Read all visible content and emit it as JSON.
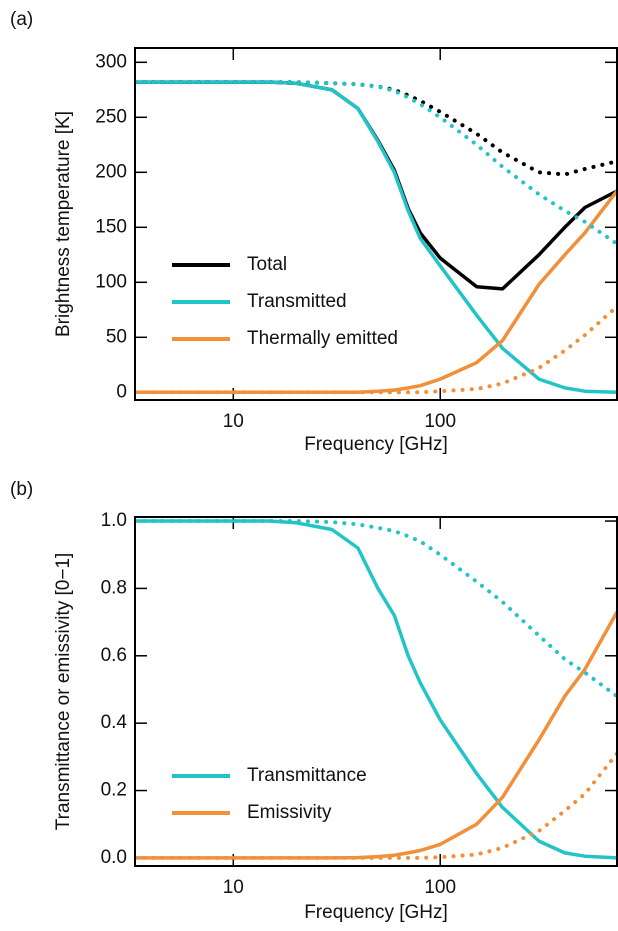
{
  "chart_data": [
    {
      "type": "line",
      "panel_label": "(a)",
      "x_label": "Frequency [GHz]",
      "y_label": "Brightness temperature [K]",
      "x_scale": "log",
      "xlim": [
        3.35,
        715
      ],
      "xticks": [
        10,
        100
      ],
      "ylim": [
        -7,
        313
      ],
      "yticks": [
        0,
        50,
        100,
        150,
        200,
        250,
        300
      ],
      "legend": "center left",
      "x": [
        3.35,
        5,
        10,
        15,
        20,
        30,
        40,
        50,
        60,
        70,
        80,
        100,
        150,
        200,
        300,
        400,
        500,
        715
      ],
      "series": [
        {
          "name": "Total",
          "color": "#000000",
          "style": "solid",
          "values": [
            282,
            282,
            282,
            282,
            281,
            275,
            258,
            229,
            202,
            167,
            145,
            122,
            96,
            94,
            125,
            150,
            168,
            183
          ]
        },
        {
          "name": "Transmitted",
          "color": "#22c4c8",
          "style": "solid",
          "values": [
            282,
            282,
            282,
            282,
            281,
            275,
            258,
            228,
            200,
            165,
            140,
            115,
            70,
            40,
            12,
            4,
            1,
            0
          ]
        },
        {
          "name": "Thermally emitted",
          "color": "#f0903a",
          "style": "solid",
          "values": [
            0,
            0,
            0,
            0,
            0,
            0,
            0,
            1,
            2,
            4,
            6,
            12,
            27,
            47,
            98,
            125,
            145,
            183
          ]
        },
        {
          "color": "#000000",
          "style": "dotted",
          "values": [
            282,
            282,
            282,
            282,
            282,
            281,
            280,
            278,
            275,
            270,
            265,
            255,
            235,
            218,
            200,
            198,
            203,
            210
          ]
        },
        {
          "color": "#22c4c8",
          "style": "dotted",
          "values": [
            282,
            282,
            282,
            282,
            282,
            281,
            280,
            278,
            274,
            268,
            262,
            250,
            225,
            205,
            180,
            165,
            155,
            135
          ]
        },
        {
          "color": "#f0903a",
          "style": "dotted",
          "values": [
            0,
            0,
            0,
            0,
            0,
            0,
            0,
            0,
            0,
            0,
            0,
            1,
            3,
            8,
            22,
            38,
            52,
            78
          ]
        }
      ]
    },
    {
      "type": "line",
      "panel_label": "(b)",
      "x_label": "Frequency [GHz]",
      "y_label": "Transmittance or emissivity [0−1]",
      "x_scale": "log",
      "xlim": [
        3.35,
        715
      ],
      "xticks": [
        10,
        100
      ],
      "ylim": [
        -0.024,
        1.012
      ],
      "yticks": [
        {
          "value": 0,
          "label": "0.0"
        },
        0.2,
        0.4,
        0.6,
        0.8,
        {
          "value": 1,
          "label": "1.0"
        }
      ],
      "legend": "center left",
      "x": [
        3.35,
        5,
        10,
        15,
        20,
        30,
        40,
        50,
        60,
        70,
        80,
        100,
        150,
        200,
        300,
        400,
        500,
        715
      ],
      "series": [
        {
          "name": "Transmittance",
          "color": "#22c4c8",
          "style": "solid",
          "values": [
            1,
            1,
            1,
            1,
            0.995,
            0.975,
            0.92,
            0.8,
            0.72,
            0.6,
            0.52,
            0.41,
            0.25,
            0.15,
            0.05,
            0.015,
            0.005,
            0
          ]
        },
        {
          "name": "Emissivity",
          "color": "#f0903a",
          "style": "solid",
          "values": [
            0,
            0,
            0,
            0,
            0,
            0,
            0.001,
            0.004,
            0.008,
            0.015,
            0.022,
            0.04,
            0.1,
            0.18,
            0.35,
            0.48,
            0.56,
            0.73
          ]
        },
        {
          "color": "#22c4c8",
          "style": "dotted",
          "values": [
            1,
            1,
            1,
            1,
            1,
            0.997,
            0.99,
            0.98,
            0.97,
            0.955,
            0.94,
            0.9,
            0.82,
            0.76,
            0.66,
            0.59,
            0.55,
            0.48
          ]
        },
        {
          "color": "#f0903a",
          "style": "dotted",
          "values": [
            0,
            0,
            0,
            0,
            0,
            0,
            0,
            0,
            0,
            0,
            0,
            0.002,
            0.01,
            0.03,
            0.08,
            0.14,
            0.19,
            0.31
          ]
        }
      ]
    }
  ]
}
